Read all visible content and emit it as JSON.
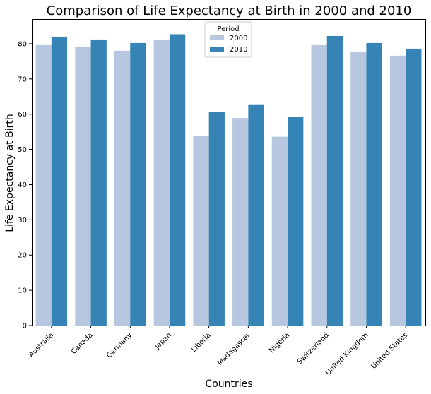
{
  "chart_data": {
    "type": "bar",
    "title": "Comparison of Life Expectancy at Birth in 2000 and 2010",
    "xlabel": "Countries",
    "ylabel": "Life Expectancy at Birth",
    "categories": [
      "Australia",
      "Canada",
      "Germany",
      "Japan",
      "Liberia",
      "Madagascar",
      "Nigeria",
      "Switzerland",
      "United Kingdom",
      "United States"
    ],
    "series": [
      {
        "name": "2000",
        "color": "#b8c7e0",
        "values": [
          79.6,
          79.0,
          78.0,
          81.1,
          53.9,
          58.9,
          53.6,
          79.6,
          77.8,
          76.6
        ]
      },
      {
        "name": "2010",
        "color": "#3584b5",
        "values": [
          82.0,
          81.2,
          80.2,
          82.7,
          60.6,
          62.8,
          59.2,
          82.2,
          80.2,
          78.6
        ]
      }
    ],
    "ylim": [
      0,
      87
    ],
    "yticks": [
      0,
      10,
      20,
      30,
      40,
      50,
      60,
      70,
      80
    ],
    "legend": {
      "title": "Period",
      "position": "top-center"
    },
    "grid": false
  }
}
